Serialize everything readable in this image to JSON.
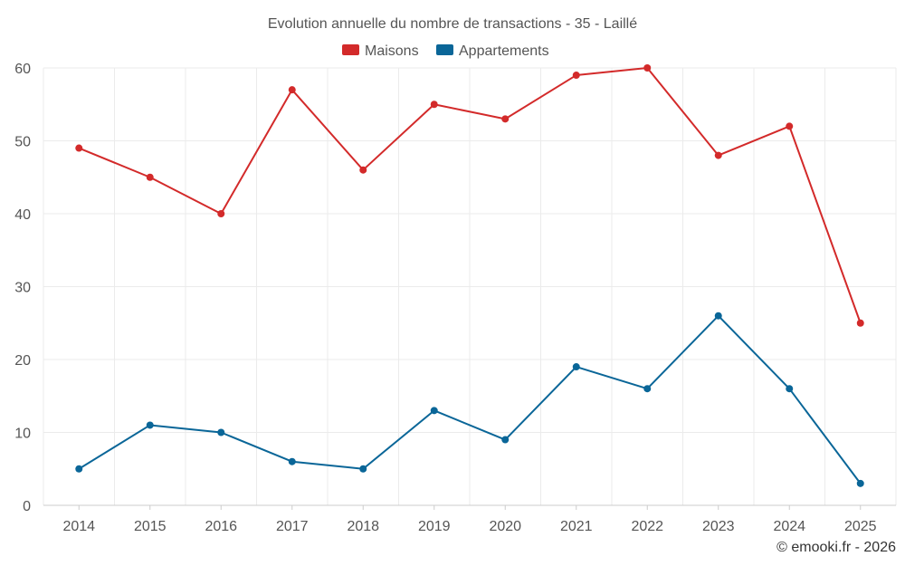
{
  "chart_data": {
    "type": "line",
    "title": "Evolution annuelle du nombre de transactions - 35 - Laillé",
    "xlabel": "",
    "ylabel": "",
    "categories": [
      "2014",
      "2015",
      "2016",
      "2017",
      "2018",
      "2019",
      "2020",
      "2021",
      "2022",
      "2023",
      "2024",
      "2025"
    ],
    "ylim": [
      0,
      60
    ],
    "yticks": [
      0,
      10,
      20,
      30,
      40,
      50,
      60
    ],
    "grid": true,
    "legend_position": "top-center",
    "series": [
      {
        "name": "Maisons",
        "color": "#d32a2a",
        "values": [
          49,
          45,
          40,
          57,
          46,
          55,
          53,
          59,
          60,
          48,
          52,
          25
        ]
      },
      {
        "name": "Appartements",
        "color": "#0a6698",
        "values": [
          5,
          11,
          10,
          6,
          5,
          13,
          9,
          19,
          16,
          26,
          16,
          3
        ]
      }
    ],
    "credit": "© emooki.fr - 2026"
  }
}
